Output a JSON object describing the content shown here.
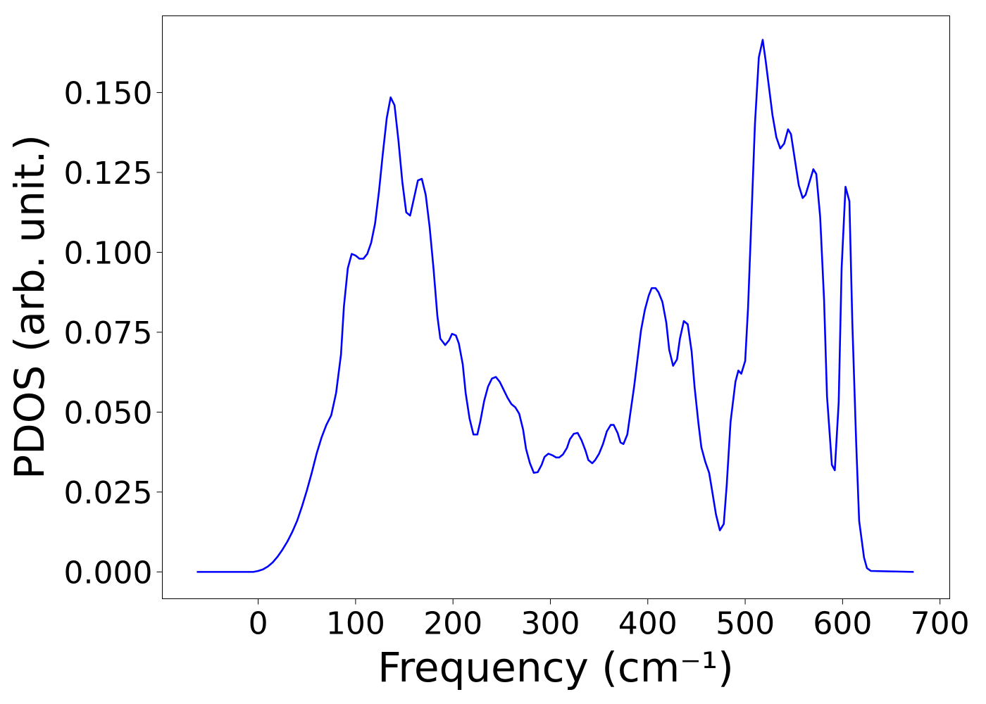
{
  "chart_data": {
    "type": "line",
    "xlabel": "Frequency (cm⁻¹)",
    "ylabel": "PDOS (arb. unit.)",
    "xlim": [
      -98.4,
      710
    ],
    "ylim": [
      -0.0084,
      0.174
    ],
    "xticks": [
      0,
      100,
      200,
      300,
      400,
      500,
      600,
      700
    ],
    "yticks": [
      {
        "value": 0,
        "label": "0.000"
      },
      {
        "value": 0.025,
        "label": "0.025"
      },
      {
        "value": 0.05,
        "label": "0.050"
      },
      {
        "value": 0.075,
        "label": "0.075"
      },
      {
        "value": 0.1,
        "label": "0.100"
      },
      {
        "value": 0.125,
        "label": "0.125"
      },
      {
        "value": 0.15,
        "label": "0.150"
      }
    ],
    "grid": false,
    "series": [
      {
        "color": "#0000ff",
        "x": [
          -63,
          -40,
          -20,
          -5,
          0,
          5,
          10,
          15,
          20,
          25,
          30,
          35,
          40,
          45,
          50,
          55,
          60,
          65,
          70,
          75,
          80,
          85,
          88,
          92,
          96,
          100,
          104,
          108,
          112,
          116,
          120,
          124,
          128,
          132,
          136,
          140,
          144,
          148,
          152,
          156,
          160,
          164,
          168,
          172,
          176,
          180,
          184,
          187,
          192,
          196,
          199,
          203,
          206,
          210,
          213,
          217,
          221,
          225,
          228,
          232,
          236,
          240,
          244,
          248,
          252,
          256,
          260,
          264,
          268,
          272,
          275,
          279,
          283,
          287,
          291,
          294,
          298,
          302,
          306,
          309,
          313,
          317,
          320,
          324,
          328,
          332,
          336,
          339,
          343,
          346,
          350,
          354,
          358,
          362,
          365,
          369,
          372,
          375,
          379,
          382,
          386,
          390,
          393,
          397,
          401,
          404,
          408,
          411,
          415,
          419,
          422,
          426,
          430,
          433,
          437,
          441,
          445,
          448,
          452,
          455,
          459,
          463,
          466,
          470,
          474,
          478,
          481,
          485,
          490,
          493,
          496,
          500,
          503,
          510,
          514,
          518,
          521,
          528,
          532,
          536,
          540,
          544,
          547,
          555,
          559,
          562,
          570,
          573,
          577,
          581,
          584,
          589,
          592,
          596,
          599,
          603,
          607,
          610,
          614,
          617,
          622,
          625,
          629,
          673
        ],
        "values": [
          0,
          0,
          0,
          0,
          0.0003,
          0.0008,
          0.0017,
          0.003,
          0.0048,
          0.007,
          0.0095,
          0.0125,
          0.016,
          0.0205,
          0.0255,
          0.031,
          0.037,
          0.042,
          0.046,
          0.049,
          0.056,
          0.068,
          0.083,
          0.095,
          0.0995,
          0.099,
          0.098,
          0.098,
          0.0995,
          0.103,
          0.109,
          0.119,
          0.131,
          0.142,
          0.1485,
          0.146,
          0.135,
          0.122,
          0.1125,
          0.1115,
          0.117,
          0.1225,
          0.123,
          0.118,
          0.108,
          0.095,
          0.08,
          0.073,
          0.071,
          0.0725,
          0.0745,
          0.074,
          0.0715,
          0.065,
          0.056,
          0.048,
          0.043,
          0.043,
          0.047,
          0.0535,
          0.058,
          0.0605,
          0.061,
          0.0595,
          0.057,
          0.0545,
          0.0525,
          0.0515,
          0.0495,
          0.0445,
          0.0385,
          0.034,
          0.031,
          0.0312,
          0.0335,
          0.036,
          0.037,
          0.0365,
          0.0358,
          0.0358,
          0.0368,
          0.0388,
          0.0415,
          0.0432,
          0.0435,
          0.0412,
          0.038,
          0.035,
          0.034,
          0.035,
          0.037,
          0.04,
          0.044,
          0.046,
          0.046,
          0.0435,
          0.0405,
          0.04,
          0.043,
          0.0495,
          0.058,
          0.068,
          0.0755,
          0.082,
          0.0865,
          0.0888,
          0.0888,
          0.0875,
          0.0845,
          0.078,
          0.0695,
          0.0645,
          0.0665,
          0.073,
          0.0785,
          0.0775,
          0.069,
          0.058,
          0.0465,
          0.039,
          0.0345,
          0.031,
          0.0255,
          0.018,
          0.013,
          0.015,
          0.027,
          0.047,
          0.0595,
          0.063,
          0.062,
          0.066,
          0.083,
          0.14,
          0.161,
          0.1665,
          0.16,
          0.143,
          0.136,
          0.1325,
          0.134,
          0.1385,
          0.137,
          0.121,
          0.117,
          0.118,
          0.126,
          0.1245,
          0.111,
          0.085,
          0.055,
          0.0335,
          0.0318,
          0.053,
          0.095,
          0.1205,
          0.116,
          0.078,
          0.04,
          0.016,
          0.0045,
          0.0012,
          0.0003,
          0
        ]
      }
    ]
  }
}
